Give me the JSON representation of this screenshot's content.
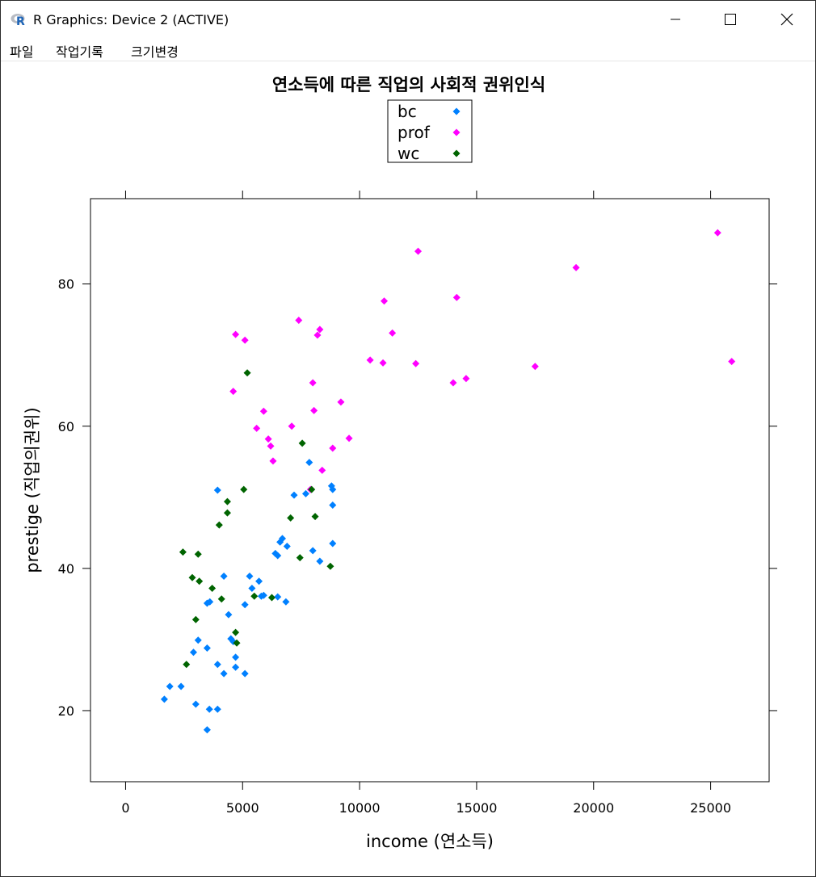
{
  "window": {
    "title": "R Graphics: Device 2 (ACTIVE)",
    "controls": {
      "minimize": "—",
      "maximize": "☐",
      "close": "✕"
    }
  },
  "menu": {
    "items": [
      {
        "label": "파일"
      },
      {
        "label": "작업기록"
      },
      {
        "label": "크기변경"
      }
    ]
  },
  "chart_data": {
    "type": "scatter",
    "title": "연소득에 따른 직업의 사회적 권위인식",
    "xlabel": "income (연소득)",
    "ylabel": "prestige (직업의권위)",
    "xlim": [
      -1500,
      27500
    ],
    "ylim": [
      10,
      92
    ],
    "xticks": [
      0,
      5000,
      10000,
      15000,
      20000,
      25000
    ],
    "yticks": [
      20,
      40,
      60,
      80
    ],
    "legend_position": "top-center",
    "series": [
      {
        "name": "bc",
        "color": "#0080ff",
        "points": [
          [
            1656,
            21.6
          ],
          [
            1890,
            23.4
          ],
          [
            2370,
            23.4
          ],
          [
            2901,
            28.2
          ],
          [
            3000,
            20.9
          ],
          [
            3100,
            29.9
          ],
          [
            3485,
            17.3
          ],
          [
            3485,
            28.8
          ],
          [
            3485,
            35.1
          ],
          [
            3582,
            20.2
          ],
          [
            3600,
            35.3
          ],
          [
            3930,
            26.5
          ],
          [
            3930,
            20.2
          ],
          [
            3930,
            51.0
          ],
          [
            4200,
            38.9
          ],
          [
            4200,
            25.2
          ],
          [
            4400,
            33.5
          ],
          [
            4500,
            30.1
          ],
          [
            4600,
            29.7
          ],
          [
            4700,
            27.5
          ],
          [
            4700,
            26.1
          ],
          [
            5100,
            25.2
          ],
          [
            5100,
            34.9
          ],
          [
            5300,
            38.9
          ],
          [
            5400,
            37.2
          ],
          [
            5700,
            38.2
          ],
          [
            5800,
            36.1
          ],
          [
            5900,
            36.2
          ],
          [
            6400,
            42.1
          ],
          [
            6500,
            41.8
          ],
          [
            6500,
            36.0
          ],
          [
            6600,
            43.7
          ],
          [
            6700,
            44.2
          ],
          [
            6900,
            43.1
          ],
          [
            6850,
            35.3
          ],
          [
            7200,
            50.3
          ],
          [
            7700,
            50.5
          ],
          [
            7850,
            54.9
          ],
          [
            8000,
            42.5
          ],
          [
            8300,
            41.0
          ],
          [
            8800,
            51.6
          ],
          [
            8850,
            51.1
          ],
          [
            8850,
            48.9
          ],
          [
            8850,
            43.5
          ]
        ]
      },
      {
        "name": "prof",
        "color": "#ff00ff",
        "points": [
          [
            4600,
            64.9
          ],
          [
            4700,
            72.9
          ],
          [
            5100,
            72.1
          ],
          [
            5600,
            59.7
          ],
          [
            5900,
            62.1
          ],
          [
            6100,
            58.2
          ],
          [
            6200,
            57.2
          ],
          [
            6300,
            55.1
          ],
          [
            7100,
            60.0
          ],
          [
            7400,
            74.9
          ],
          [
            7900,
            51.1
          ],
          [
            8000,
            66.1
          ],
          [
            8050,
            62.2
          ],
          [
            8200,
            72.8
          ],
          [
            8300,
            73.6
          ],
          [
            8400,
            53.8
          ],
          [
            8850,
            56.9
          ],
          [
            9200,
            63.4
          ],
          [
            9550,
            58.3
          ],
          [
            10450,
            69.3
          ],
          [
            11000,
            68.9
          ],
          [
            11050,
            77.6
          ],
          [
            11400,
            73.1
          ],
          [
            12400,
            68.8
          ],
          [
            12500,
            84.6
          ],
          [
            14000,
            66.1
          ],
          [
            14150,
            78.1
          ],
          [
            14550,
            66.7
          ],
          [
            17500,
            68.4
          ],
          [
            19250,
            82.3
          ],
          [
            25300,
            87.2
          ],
          [
            25900,
            69.1
          ]
        ]
      },
      {
        "name": "wc",
        "color": "#006400",
        "points": [
          [
            2450,
            42.3
          ],
          [
            2600,
            26.5
          ],
          [
            2850,
            38.7
          ],
          [
            3000,
            32.8
          ],
          [
            3100,
            42.0
          ],
          [
            3150,
            38.2
          ],
          [
            3700,
            37.2
          ],
          [
            4000,
            46.1
          ],
          [
            4100,
            35.7
          ],
          [
            4350,
            49.4
          ],
          [
            4350,
            47.8
          ],
          [
            4700,
            31.0
          ],
          [
            4750,
            29.5
          ],
          [
            5050,
            51.1
          ],
          [
            5200,
            67.5
          ],
          [
            5500,
            36.1
          ],
          [
            6250,
            35.9
          ],
          [
            7050,
            47.1
          ],
          [
            7450,
            41.5
          ],
          [
            7550,
            57.6
          ],
          [
            7950,
            51.1
          ],
          [
            8100,
            47.3
          ],
          [
            8750,
            40.3
          ]
        ]
      }
    ]
  }
}
